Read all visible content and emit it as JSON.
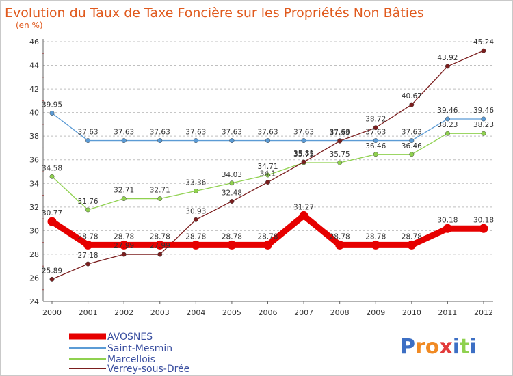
{
  "chart_data": {
    "type": "line",
    "title": "Evolution du Taux de Taxe Foncière sur les Propriétés Non Bâties",
    "subtitle": "(en %)",
    "xlabel": "",
    "ylabel": "",
    "categories": [
      "2000",
      "2001",
      "2002",
      "2003",
      "2004",
      "2005",
      "2006",
      "2007",
      "2008",
      "2009",
      "2010",
      "2011",
      "2012"
    ],
    "ylim": [
      24,
      46
    ],
    "yticks": [
      "24",
      "26",
      "28",
      "30",
      "32",
      "34",
      "36",
      "38",
      "40",
      "42",
      "44",
      "46"
    ],
    "grid": "horizontal dashed",
    "legend_position": "bottom-left",
    "series": [
      {
        "name": "AVOSNES",
        "color": "#e60000",
        "weight": "heavy",
        "values": [
          30.77,
          28.78,
          28.78,
          28.78,
          28.78,
          28.78,
          28.78,
          31.27,
          28.78,
          28.78,
          28.78,
          30.18,
          30.18
        ],
        "labels": [
          "30.77",
          "28.78",
          "28.78",
          "28.78",
          "28.78",
          "28.78",
          "28.78",
          "31.27",
          "28.78",
          "28.78",
          "28.78",
          "30.18",
          "30.18"
        ]
      },
      {
        "name": "Saint-Mesmin",
        "color": "#5b9bd5",
        "weight": "thin",
        "values": [
          39.95,
          37.63,
          37.63,
          37.63,
          37.63,
          37.63,
          37.63,
          37.63,
          37.63,
          37.63,
          37.63,
          39.46,
          39.46
        ],
        "labels": [
          "39.95",
          "37.63",
          "37.63",
          "37.63",
          "37.63",
          "37.63",
          "37.63",
          "37.63",
          "37.63",
          "37.63",
          "37.63",
          "39.46",
          "39.46"
        ]
      },
      {
        "name": "Marcellois",
        "color": "#8fd14f",
        "weight": "thin",
        "values": [
          34.58,
          31.76,
          32.71,
          32.71,
          33.36,
          34.03,
          34.71,
          35.75,
          35.75,
          36.46,
          36.46,
          38.23,
          38.23
        ],
        "labels": [
          "34.58",
          "31.76",
          "32.71",
          "32.71",
          "33.36",
          "34.03",
          "34.71",
          "35.75",
          "35.75",
          "36.46",
          "36.46",
          "38.23",
          "38.23"
        ]
      },
      {
        "name": "Verrey-sous-Drée",
        "color": "#7b1e1e",
        "weight": "thin",
        "values": [
          25.89,
          27.18,
          27.99,
          27.99,
          30.93,
          32.48,
          34.1,
          35.81,
          37.59,
          38.72,
          40.67,
          43.92,
          45.24
        ],
        "labels": [
          "25.89",
          "27.18",
          "27.99",
          "27.99",
          "30.93",
          "32.48",
          "34.1",
          "35.81",
          "37.59",
          "38.72",
          "40.67",
          "43.92",
          "45.24"
        ]
      }
    ]
  },
  "branding": {
    "logo_text": "Proxiti",
    "logo_letters": [
      "P",
      "r",
      "o",
      "x",
      "i",
      "t",
      "i"
    ],
    "logo_colors": [
      "#3d6fc4",
      "#f08a24",
      "#f08a24",
      "#e23b3b",
      "#3d6fc4",
      "#8fd14f",
      "#3d6fc4"
    ]
  },
  "colors": {
    "title": "#e05a1e",
    "grid": "#bfbfbf",
    "axis": "#666666",
    "legend_text": "#3a4fa0"
  }
}
